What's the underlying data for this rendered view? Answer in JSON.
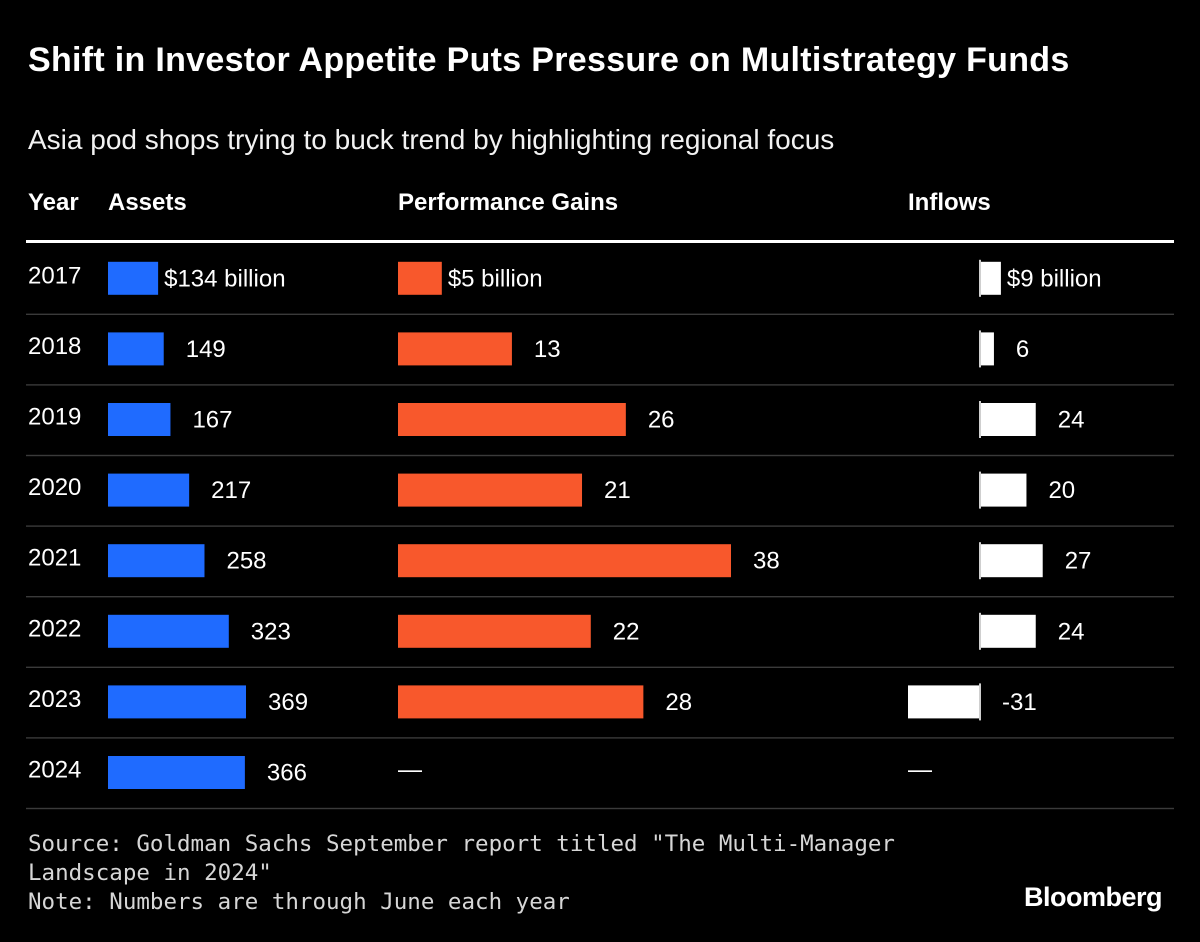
{
  "title": "Shift in Investor Appetite Puts Pressure on Multistrategy Funds",
  "subtitle": "Asia pod shops trying to buck trend by highlighting regional focus",
  "columns": {
    "year": "Year",
    "assets": "Assets",
    "gains": "Performance Gains",
    "inflows": "Inflows"
  },
  "colors": {
    "assets": "#1f6bff",
    "gains": "#f8582c",
    "inflows": "#ffffff",
    "rule": "#3a3a3a"
  },
  "chart_data": {
    "type": "bar",
    "categories": [
      "2017",
      "2018",
      "2019",
      "2020",
      "2021",
      "2022",
      "2023",
      "2024"
    ],
    "series": [
      {
        "name": "Assets",
        "unit": "billion",
        "values": [
          134,
          149,
          167,
          217,
          258,
          323,
          369,
          366
        ],
        "labels": [
          "$134 billion",
          "149",
          "167",
          "217",
          "258",
          "323",
          "369",
          "366"
        ]
      },
      {
        "name": "Performance Gains",
        "unit": "billion",
        "values": [
          5,
          13,
          26,
          21,
          38,
          22,
          28,
          null
        ],
        "labels": [
          "$5 billion",
          "13",
          "26",
          "21",
          "38",
          "22",
          "28",
          "—"
        ]
      },
      {
        "name": "Inflows",
        "unit": "billion",
        "values": [
          9,
          6,
          24,
          20,
          27,
          24,
          -31,
          null
        ],
        "labels": [
          "$9 billion",
          "6",
          "24",
          "20",
          "27",
          "24",
          "-31",
          "—"
        ]
      }
    ]
  },
  "footer": {
    "source_line1": "Source: Goldman Sachs September report titled \"The Multi-Manager",
    "source_line2": "Landscape in 2024\"",
    "note": "Note: Numbers are through June each year",
    "brand": "Bloomberg"
  }
}
